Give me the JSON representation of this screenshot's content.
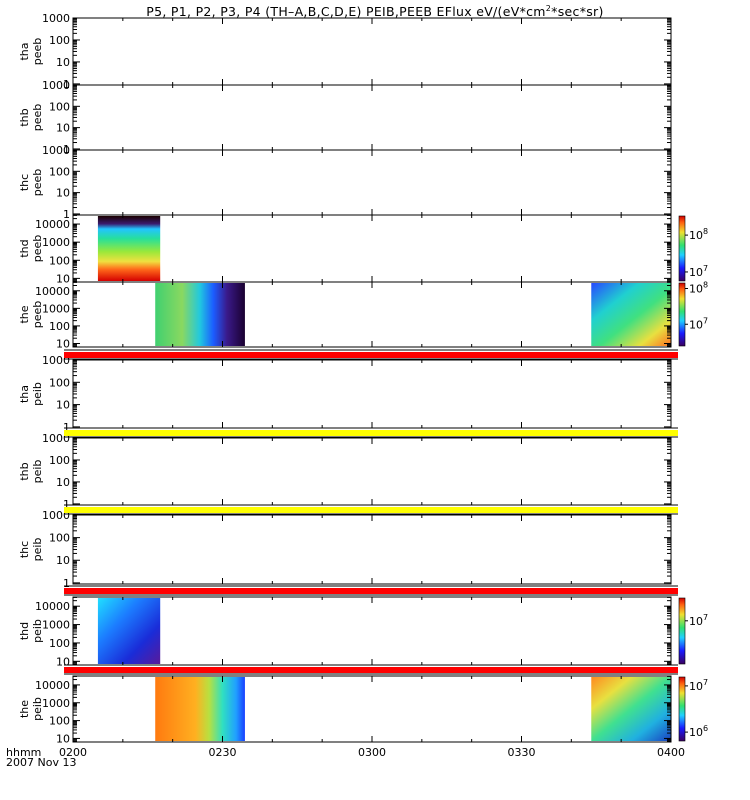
{
  "title": {
    "prefix": "P5, P1, P2, P3, P4 (TH–A,B,C,D,E) PEIB,PEEB EFlux eV/(eV*cm",
    "sup": "2",
    "suffix": "*sec*sr)"
  },
  "footer": {
    "hhmm": "hhmm",
    "date": "2007 Nov 13"
  },
  "chart_data": {
    "type": "heatmap",
    "x_ticks": [
      "0200",
      "0230",
      "0300",
      "0330",
      "0400"
    ],
    "x_range_minutes": [
      0,
      120
    ],
    "panels": [
      {
        "probe": "tha",
        "product": "peeb",
        "y_ticks": [
          "1",
          "10",
          "100",
          "1000"
        ],
        "y_max_exp": 3.0,
        "data_blocks": [],
        "colorbar": null
      },
      {
        "probe": "thb",
        "product": "peeb",
        "y_ticks": [
          "1",
          "10",
          "100",
          "1000"
        ],
        "y_max_exp": 3.0,
        "data_blocks": [],
        "colorbar": null
      },
      {
        "probe": "thc",
        "product": "peeb",
        "y_ticks": [
          "1",
          "10",
          "100",
          "1000"
        ],
        "y_max_exp": 3.0,
        "data_blocks": [],
        "colorbar": null
      },
      {
        "probe": "thd",
        "product": "peeb",
        "y_ticks": [
          "10",
          "100",
          "1000",
          "10000"
        ],
        "y_max_exp": 4.5,
        "data_blocks": [
          {
            "t_start": 5,
            "t_end": 17.5,
            "style": "thd-peeb"
          }
        ],
        "colorbar": {
          "labels": [
            {
              "base": "10",
              "exp": "8",
              "frac": 0.3
            },
            {
              "base": "10",
              "exp": "7",
              "frac": 0.85
            }
          ]
        }
      },
      {
        "probe": "the",
        "product": "peeb",
        "y_ticks": [
          "10",
          "100",
          "1000",
          "10000"
        ],
        "y_max_exp": 4.5,
        "data_blocks": [
          {
            "t_start": 16.5,
            "t_end": 34.5,
            "style": "the-peeb-1"
          },
          {
            "t_start": 104,
            "t_end": 120,
            "style": "the-peeb-2"
          }
        ],
        "colorbar": {
          "labels": [
            {
              "base": "10",
              "exp": "8",
              "frac": 0.1
            },
            {
              "base": "10",
              "exp": "7",
              "frac": 0.65
            }
          ]
        }
      },
      {
        "probe": "tha",
        "product": "peib",
        "y_ticks": [
          "1",
          "10",
          "100",
          "1000"
        ],
        "y_max_exp": 3.0,
        "data_blocks": [],
        "colorbar": null,
        "bar_color": "red"
      },
      {
        "probe": "thb",
        "product": "peib",
        "y_ticks": [
          "1",
          "10",
          "100",
          "1000"
        ],
        "y_max_exp": 3.0,
        "data_blocks": [],
        "colorbar": null,
        "bar_color": "yellow"
      },
      {
        "probe": "thc",
        "product": "peib",
        "y_ticks": [
          "1",
          "10",
          "100",
          "1000"
        ],
        "y_max_exp": 3.0,
        "data_blocks": [],
        "colorbar": null,
        "bar_color": "yellow"
      },
      {
        "probe": "thd",
        "product": "peib",
        "y_ticks": [
          "10",
          "100",
          "1000",
          "10000"
        ],
        "y_max_exp": 4.5,
        "data_blocks": [
          {
            "t_start": 5,
            "t_end": 17.5,
            "style": "thd-peib"
          }
        ],
        "colorbar": {
          "labels": [
            {
              "base": "10",
              "exp": "7",
              "frac": 0.35
            }
          ]
        },
        "bar_color": "red"
      },
      {
        "probe": "the",
        "product": "peib",
        "y_ticks": [
          "10",
          "100",
          "1000",
          "10000"
        ],
        "y_max_exp": 4.5,
        "data_blocks": [
          {
            "t_start": 16.5,
            "t_end": 34.5,
            "style": "the-peib-1"
          },
          {
            "t_start": 104,
            "t_end": 120,
            "style": "the-peib-2"
          }
        ],
        "colorbar": {
          "labels": [
            {
              "base": "10",
              "exp": "7",
              "frac": 0.15
            },
            {
              "base": "10",
              "exp": "6",
              "frac": 0.85
            }
          ]
        },
        "bar_color": "red"
      }
    ]
  }
}
